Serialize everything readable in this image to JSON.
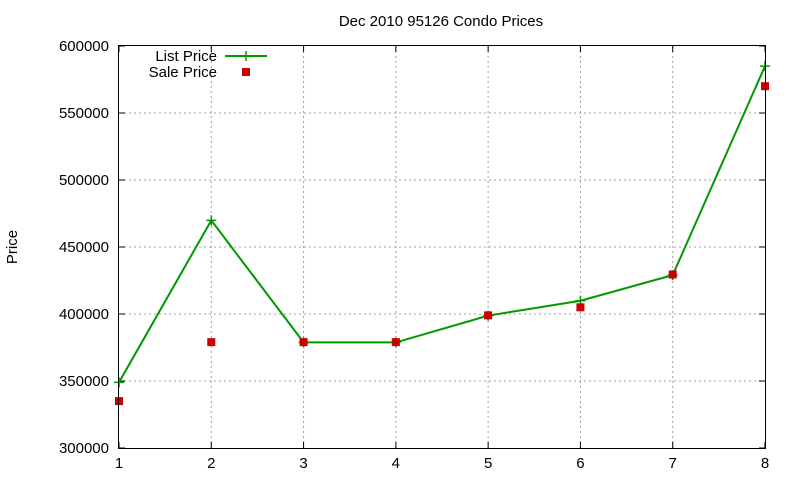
{
  "chart_data": {
    "type": "line",
    "title": "Dec 2010 95126 Condo Prices",
    "xlabel": "",
    "ylabel": "Price",
    "x": [
      1,
      2,
      3,
      4,
      5,
      6,
      7,
      8
    ],
    "xticks": [
      "1",
      "2",
      "3",
      "4",
      "5",
      "6",
      "7",
      "8"
    ],
    "xlim": [
      1,
      8
    ],
    "ylim": [
      300000,
      600000
    ],
    "yticks": [
      "300000",
      "350000",
      "400000",
      "450000",
      "500000",
      "550000",
      "600000"
    ],
    "grid": true,
    "legend_position": "top-left",
    "series": [
      {
        "name": "List Price",
        "style": "line+points",
        "marker": "plus",
        "color": "#009900",
        "values": [
          349000,
          469900,
          378800,
          378800,
          398800,
          409900,
          429000,
          585000
        ]
      },
      {
        "name": "Sale Price",
        "style": "points",
        "marker": "square",
        "color": "#cc0000",
        "values": [
          335000,
          379000,
          379000,
          379000,
          399000,
          405000,
          429500,
          570000
        ]
      }
    ]
  }
}
